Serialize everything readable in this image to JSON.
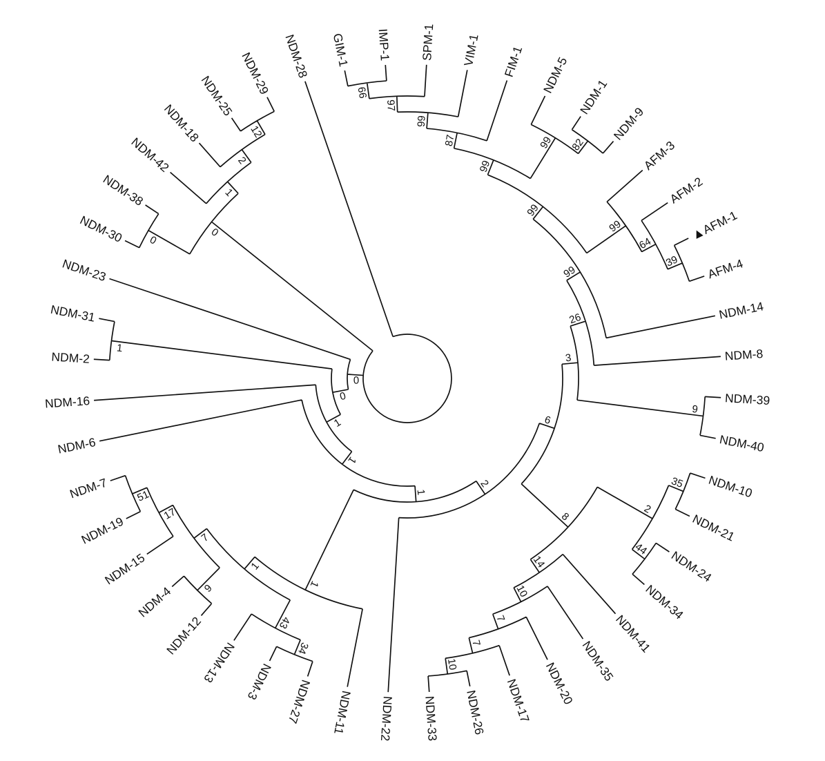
{
  "figure": {
    "type": "circular-phylogenetic-tree",
    "background": "#ffffff",
    "line_color": "#111111",
    "text_color": "#111111",
    "highlight_marker": "filled-triangle",
    "highlighted_taxon": "AFM-1"
  },
  "tree": {
    "children": [
      {
        "name": "NDM-28"
      },
      {
        "support": "0",
        "children": [
          {
            "support": "0",
            "children": [
              {
                "support": "1",
                "children": [
                  {
                    "support": "1",
                    "children": [
                      {
                        "support": "1",
                        "children": [
                          {
                            "support": "2",
                            "children": [
                              {
                                "support": "6",
                                "children": [
                                  {
                                    "support": "3",
                                    "children": [
                                      {
                                        "support": "26",
                                        "children": [
                                          {
                                            "support": "99",
                                            "children": [
                                              {
                                                "support": "99",
                                                "children": [
                                                  {
                                                    "support": "99",
                                                    "children": [
                                                      {
                                                        "support": "87",
                                                        "children": [
                                                          {
                                                            "support": "99",
                                                            "children": [
                                                              {
                                                                "support": "97",
                                                                "children": [
                                                                  {
                                                                    "support": "66",
                                                                    "children": [
                                                                      {
                                                                        "name": "GIM-1"
                                                                      },
                                                                      {
                                                                        "name": "IMP-1"
                                                                      }
                                                                    ]
                                                                  },
                                                                  {
                                                                    "name": "SPM-1"
                                                                  }
                                                                ]
                                                              },
                                                              {
                                                                "name": "VIM-1"
                                                              }
                                                            ]
                                                          },
                                                          {
                                                            "name": "FIM-1"
                                                          }
                                                        ]
                                                      },
                                                      {
                                                        "support": "99",
                                                        "children": [
                                                          {
                                                            "name": "NDM-5"
                                                          },
                                                          {
                                                            "support": "82",
                                                            "children": [
                                                              {
                                                                "name": "NDM-1"
                                                              },
                                                              {
                                                                "name": "NDM-9"
                                                              }
                                                            ]
                                                          }
                                                        ]
                                                      }
                                                    ]
                                                  },
                                                  {
                                                    "support": "99",
                                                    "children": [
                                                      {
                                                        "name": "AFM-3"
                                                      },
                                                      {
                                                        "support": "64",
                                                        "children": [
                                                          {
                                                            "name": "AFM-2"
                                                          },
                                                          {
                                                            "support": "39",
                                                            "children": [
                                                              {
                                                                "name": "AFM-1",
                                                                "marker": "filled-triangle"
                                                              },
                                                              {
                                                                "name": "AFM-4"
                                                              }
                                                            ]
                                                          }
                                                        ]
                                                      }
                                                    ]
                                                  }
                                                ]
                                              },
                                              {
                                                "name": "NDM-14"
                                              }
                                            ]
                                          },
                                          {
                                            "name": "NDM-8"
                                          }
                                        ]
                                      },
                                      {
                                        "support": "9",
                                        "children": [
                                          {
                                            "name": "NDM-39"
                                          },
                                          {
                                            "name": "NDM-40"
                                          }
                                        ]
                                      }
                                    ]
                                  },
                                  {
                                    "support": "8",
                                    "children": [
                                      {
                                        "support": "2",
                                        "children": [
                                          {
                                            "support": "35",
                                            "children": [
                                              {
                                                "name": "NDM-10"
                                              },
                                              {
                                                "name": "NDM-21"
                                              }
                                            ]
                                          },
                                          {
                                            "support": "44",
                                            "children": [
                                              {
                                                "name": "NDM-24"
                                              },
                                              {
                                                "name": "NDM-34"
                                              }
                                            ]
                                          }
                                        ]
                                      },
                                      {
                                        "support": "14",
                                        "children": [
                                          {
                                            "name": "NDM-41"
                                          },
                                          {
                                            "support": "10",
                                            "children": [
                                              {
                                                "name": "NDM-35"
                                              },
                                              {
                                                "support": "7",
                                                "children": [
                                                  {
                                                    "name": "NDM-20"
                                                  },
                                                  {
                                                    "support": "7",
                                                    "children": [
                                                      {
                                                        "name": "NDM-17"
                                                      },
                                                      {
                                                        "support": "10",
                                                        "children": [
                                                          {
                                                            "name": "NDM-26"
                                                          },
                                                          {
                                                            "name": "NDM-33"
                                                          }
                                                        ]
                                                      }
                                                    ]
                                                  }
                                                ]
                                              }
                                            ]
                                          }
                                        ]
                                      }
                                    ]
                                  }
                                ]
                              },
                              {
                                "name": "NDM-22"
                              }
                            ]
                          },
                          {
                            "support": "1",
                            "children": [
                              {
                                "name": "NDM-11"
                              },
                              {
                                "support": "1",
                                "children": [
                                  {
                                    "support": "43",
                                    "children": [
                                      {
                                        "support": "34",
                                        "children": [
                                          {
                                            "name": "NDM-27"
                                          },
                                          {
                                            "name": "NDM-3"
                                          }
                                        ]
                                      },
                                      {
                                        "name": "NDM-13"
                                      }
                                    ]
                                  },
                                  {
                                    "support": "7",
                                    "children": [
                                      {
                                        "support": "9",
                                        "children": [
                                          {
                                            "name": "NDM-12"
                                          },
                                          {
                                            "name": "NDM-4"
                                          }
                                        ]
                                      },
                                      {
                                        "support": "17",
                                        "children": [
                                          {
                                            "name": "NDM-15"
                                          },
                                          {
                                            "support": "51",
                                            "children": [
                                              {
                                                "name": "NDM-19"
                                              },
                                              {
                                                "name": "NDM-7"
                                              }
                                            ]
                                          }
                                        ]
                                      }
                                    ]
                                  }
                                ]
                              }
                            ]
                          }
                        ]
                      },
                      {
                        "name": "NDM-6"
                      }
                    ]
                  },
                  {
                    "name": "NDM-16"
                  }
                ]
              },
              {
                "support": "1",
                "children": [
                  {
                    "name": "NDM-2"
                  },
                  {
                    "name": "NDM-31"
                  }
                ]
              }
            ]
          },
          {
            "name": "NDM-23"
          }
        ]
      },
      {
        "support": "0",
        "children": [
          {
            "support": "0",
            "children": [
              {
                "name": "NDM-30"
              },
              {
                "name": "NDM-38"
              }
            ]
          },
          {
            "support": "1",
            "children": [
              {
                "name": "NDM-42"
              },
              {
                "support": "2",
                "children": [
                  {
                    "name": "NDM-18"
                  },
                  {
                    "support": "12",
                    "children": [
                      {
                        "name": "NDM-25"
                      },
                      {
                        "name": "NDM-29"
                      }
                    ]
                  }
                ]
              }
            ]
          }
        ]
      }
    ]
  }
}
